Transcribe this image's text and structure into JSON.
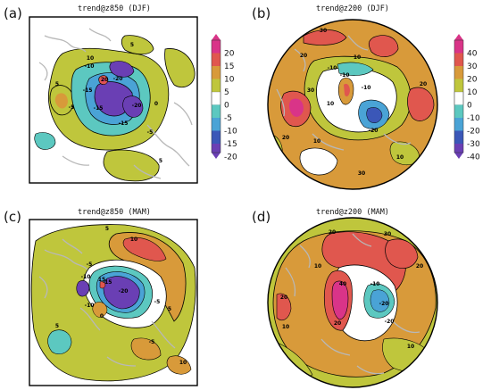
{
  "palette": {
    "c_neg40": "#6a3fb4",
    "c_neg30": "#3b57b8",
    "c_neg20": "#4aa3d6",
    "c_neg10": "#5cc8c0",
    "c_0": "#ffffff",
    "c_pos10": "#bfc63c",
    "c_pos20": "#d89a3a",
    "c_pos30": "#e0574e",
    "c_pos40": "#d93488",
    "land": "#b8b8b8"
  },
  "panels": [
    {
      "id": "a",
      "letter": "(a)",
      "title": "trend@z850 (DJF)",
      "colorbar": [
        "20",
        "15",
        "10",
        "5",
        "0",
        "-5",
        "-10",
        "-15",
        "-20"
      ],
      "contour_labels": [
        "10",
        "5",
        "5",
        "-10",
        "-15",
        "-20",
        "20",
        "-5",
        "-15",
        "-20",
        "-15",
        "-5",
        "0",
        "5"
      ]
    },
    {
      "id": "b",
      "letter": "(b)",
      "title": "trend@z200 (DJF)",
      "colorbar": [
        "40",
        "30",
        "20",
        "10",
        "0",
        "-10",
        "-20",
        "-30",
        "-40"
      ],
      "contour_labels": [
        "30",
        "20",
        "10",
        "-10",
        "-10",
        "30",
        "10",
        "-10",
        "-20",
        "20",
        "10",
        "30",
        "10",
        "20"
      ]
    },
    {
      "id": "c",
      "letter": "(c)",
      "title": "trend@z850 (MAM)",
      "contour_labels": [
        "5",
        "10",
        "-5",
        "-10",
        "-15",
        "-20",
        "15",
        "-10",
        "-5",
        "5",
        "0",
        "5",
        "-5",
        "10"
      ]
    },
    {
      "id": "d",
      "letter": "(d)",
      "title": "trend@z200 (MAM)",
      "contour_labels": [
        "20",
        "30",
        "40",
        "10",
        "-10",
        "-20",
        "20",
        "10",
        "20",
        "-20",
        "20",
        "10"
      ]
    }
  ]
}
